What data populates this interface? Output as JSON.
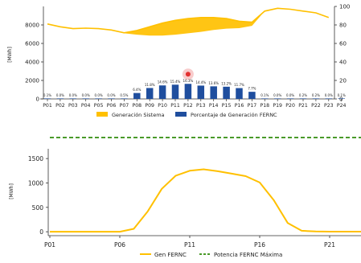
{
  "chart_data": [
    {
      "type": "bar",
      "categories": [
        "P01",
        "P02",
        "P03",
        "P04",
        "P05",
        "P06",
        "P07",
        "P08",
        "P09",
        "P10",
        "P11",
        "P12",
        "P13",
        "P14",
        "P15",
        "P16",
        "P17",
        "P18",
        "P19",
        "P20",
        "P21",
        "P22",
        "P23",
        "P24"
      ],
      "ylabel": "[MWh]",
      "ylim": [
        0,
        10000
      ],
      "yticks": [
        0,
        2000,
        4000,
        6000,
        8000
      ],
      "y2lim": [
        0,
        100
      ],
      "y2ticks": [
        0,
        20,
        40,
        60,
        80,
        100
      ],
      "series": [
        {
          "name": "Generación Sistema",
          "type": "area",
          "upper": [
            8100,
            7800,
            7600,
            7650,
            7600,
            7450,
            7150,
            7400,
            7800,
            8200,
            8500,
            8700,
            8800,
            8800,
            8700,
            8400,
            8300,
            9500,
            9800,
            9700,
            9500,
            9300,
            8800,
            null
          ],
          "lower": [
            8100,
            7800,
            7600,
            7650,
            7600,
            7450,
            7100,
            6950,
            6850,
            6850,
            6950,
            7100,
            7250,
            7450,
            7600,
            7650,
            7900,
            9500,
            9800,
            9700,
            9500,
            9300,
            8800,
            null
          ],
          "color": "#ffc000"
        },
        {
          "name": "Porcentaje de Generación FERNC",
          "type": "bar",
          "values": [
            0.1,
            0.0,
            0.0,
            0.0,
            0.0,
            0.0,
            0.5,
            6.4,
            11.8,
            14.6,
            15.4,
            16.3,
            14.4,
            13.6,
            13.2,
            11.7,
            7.7,
            0.1,
            0.0,
            0.0,
            0.2,
            0.2,
            0.0,
            0.1
          ],
          "labels": [
            "0.1%",
            "0.0%",
            "0.0%",
            "0.0%",
            "0.0%",
            "0.0%",
            "0.5%",
            "6.4%",
            "11.8%",
            "14.6%",
            "15.4%",
            "16.3%",
            "14.4%",
            "13.6%",
            "13.2%",
            "11.7%",
            "7.7%",
            "0.1%",
            "0.0%",
            "0.0%",
            "0.2%",
            "0.2%",
            "0.0%",
            "0.1%"
          ],
          "color": "#1f4e9e"
        }
      ],
      "legend": {
        "placement": "bottom",
        "items": [
          "Generación Sistema",
          "Porcentaje de Generación FERNC"
        ]
      },
      "annotations": {
        "highlight_marker_color": "#e23030"
      }
    },
    {
      "type": "line",
      "ylabel": "[MWh]",
      "ylim": [
        -80,
        1700
      ],
      "yticks": [
        0,
        500,
        1000,
        1500
      ],
      "xticks": [
        "P01",
        "P06",
        "P11",
        "P16",
        "P21"
      ],
      "x": [
        1,
        2,
        3,
        4,
        5,
        6,
        7,
        8,
        9,
        10,
        11,
        12,
        13,
        14,
        15,
        16,
        17,
        18,
        19,
        20,
        21,
        22,
        23,
        24
      ],
      "series": [
        {
          "name": "Gen FERNC",
          "values": [
            0,
            0,
            0,
            0,
            0,
            0,
            60,
            420,
            880,
            1150,
            1250,
            1280,
            1240,
            1190,
            1140,
            1010,
            650,
            180,
            20,
            5,
            3,
            3,
            2,
            0
          ],
          "color": "#ffc000"
        },
        {
          "name": "Potencia FERNC Máxima",
          "values": [
            1800,
            1800,
            1800,
            1800,
            1800,
            1800,
            1800,
            1800,
            1800,
            1800,
            1800,
            1800,
            1800,
            1800,
            1800,
            1800,
            1800,
            1800,
            1800,
            1800,
            1800,
            1800,
            1800,
            1800
          ],
          "color": "#4a9a2a",
          "style": "dashed"
        }
      ],
      "legend": {
        "placement": "bottom",
        "items": [
          "Gen FERNC",
          "Potencia FERNC Máxima"
        ]
      }
    }
  ]
}
